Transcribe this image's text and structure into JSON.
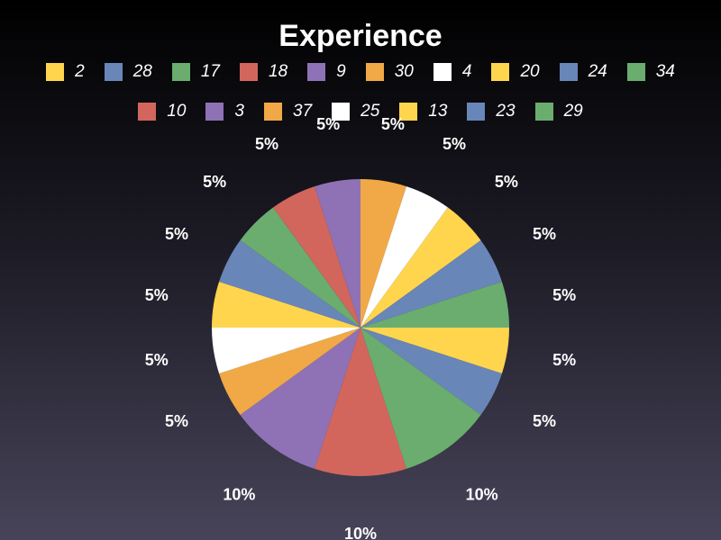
{
  "chart_data": {
    "type": "pie",
    "title": "Experience",
    "legend_placement": "top",
    "slices": [
      {
        "label": "30",
        "value": 5,
        "percent_label": "5%",
        "color": "#F0A946"
      },
      {
        "label": "4",
        "value": 5,
        "percent_label": "5%",
        "color": "#FFFFFF"
      },
      {
        "label": "20",
        "value": 5,
        "percent_label": "5%",
        "color": "#FFD54E"
      },
      {
        "label": "24",
        "value": 5,
        "percent_label": "5%",
        "color": "#6986B9"
      },
      {
        "label": "34",
        "value": 5,
        "percent_label": "5%",
        "color": "#6AAD6E"
      },
      {
        "label": "2",
        "value": 5,
        "percent_label": "5%",
        "color": "#FFD54E"
      },
      {
        "label": "28",
        "value": 5,
        "percent_label": "5%",
        "color": "#6986B9"
      },
      {
        "label": "17",
        "value": 10,
        "percent_label": "10%",
        "color": "#6AAD6E"
      },
      {
        "label": "18",
        "value": 10,
        "percent_label": "10%",
        "color": "#D2665D"
      },
      {
        "label": "9",
        "value": 10,
        "percent_label": "10%",
        "color": "#8F72B5"
      },
      {
        "label": "37",
        "value": 5,
        "percent_label": "5%",
        "color": "#F0A946"
      },
      {
        "label": "25",
        "value": 5,
        "percent_label": "5%",
        "color": "#FFFFFF"
      },
      {
        "label": "13",
        "value": 5,
        "percent_label": "5%",
        "color": "#FFD54E"
      },
      {
        "label": "23",
        "value": 5,
        "percent_label": "5%",
        "color": "#6986B9"
      },
      {
        "label": "29",
        "value": 5,
        "percent_label": "5%",
        "color": "#6AAD6E"
      },
      {
        "label": "10",
        "value": 5,
        "percent_label": "5%",
        "color": "#D2665D"
      },
      {
        "label": "3",
        "value": 5,
        "percent_label": "5%",
        "color": "#8F72B5"
      }
    ],
    "legend_rows": [
      [
        {
          "label": "2",
          "color": "#FFD54E"
        },
        {
          "label": "28",
          "color": "#6986B9"
        },
        {
          "label": "17",
          "color": "#6AAD6E"
        },
        {
          "label": "18",
          "color": "#D2665D"
        },
        {
          "label": "9",
          "color": "#8F72B5"
        },
        {
          "label": "30",
          "color": "#F0A946"
        },
        {
          "label": "4",
          "color": "#FFFFFF"
        },
        {
          "label": "20",
          "color": "#FFD54E"
        },
        {
          "label": "24",
          "color": "#6986B9"
        },
        {
          "label": "34",
          "color": "#6AAD6E"
        }
      ],
      [
        {
          "label": "10",
          "color": "#D2665D"
        },
        {
          "label": "3",
          "color": "#8F72B5"
        },
        {
          "label": "37",
          "color": "#F0A946"
        },
        {
          "label": "25",
          "color": "#FFFFFF"
        },
        {
          "label": "13",
          "color": "#FFD54E"
        },
        {
          "label": "23",
          "color": "#6986B9"
        },
        {
          "label": "29",
          "color": "#6AAD6E"
        }
      ]
    ]
  }
}
